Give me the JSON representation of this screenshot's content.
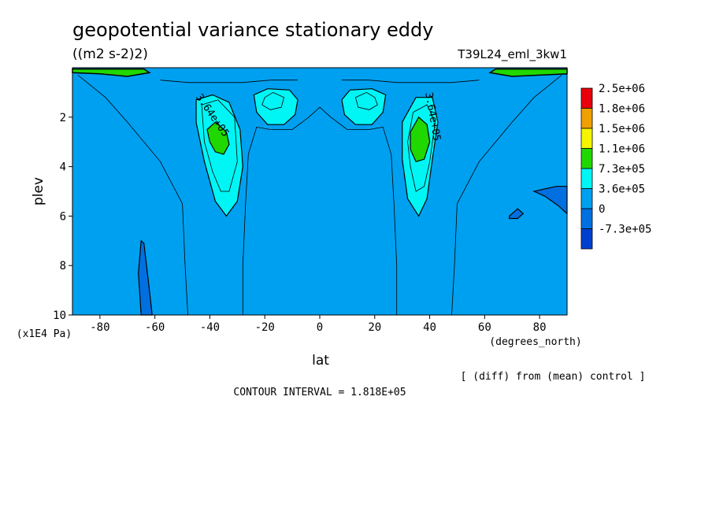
{
  "chart_data": {
    "type": "heatmap",
    "title": "geopotential variance stationary eddy",
    "units": "((m2 s-2)2)",
    "run_label": "T39L24_eml_3kw1",
    "xlabel": "lat",
    "x_units": "(degrees_north)",
    "ylabel": "plev",
    "y_units": "(x1E4 Pa)",
    "xlim": [
      -90,
      90
    ],
    "ylim": [
      10,
      0
    ],
    "x_ticks": [
      -80,
      -60,
      -40,
      -20,
      0,
      20,
      40,
      60,
      80
    ],
    "x_tick_labels": [
      "-80",
      "-60",
      "-40",
      "-20",
      "0",
      "20",
      "40",
      "60",
      "80"
    ],
    "y_ticks": [
      2,
      4,
      6,
      8,
      10
    ],
    "y_tick_labels": [
      "2",
      "4",
      "6",
      "8",
      "10"
    ],
    "contour_interval_text": "CONTOUR INTERVAL = 1.818E+05",
    "diff_note": "[ (diff) from (mean) control ]",
    "contour_labels": [
      {
        "text": "3.64e+05",
        "lat": -40,
        "plev": 2.0
      },
      {
        "text": "3.64e+05",
        "lat": 40,
        "plev": 2.0
      }
    ],
    "legend": {
      "labels": [
        "2.5e+06",
        "1.8e+06",
        "1.5e+06",
        "1.1e+06",
        "7.3e+05",
        "3.6e+05",
        "0",
        "-7.3e+05"
      ],
      "colors": [
        "#e8000b",
        "#f0a000",
        "#f5f500",
        "#20d800",
        "#00f5f5",
        "#00a0f0",
        "#0070e0",
        "#0040d0"
      ]
    },
    "regions": [
      {
        "level": "0-3.6e+05",
        "color": "#00a0f0",
        "description": "background field"
      },
      {
        "level": "3.6e+05-7.3e+05",
        "color": "#00f5f5",
        "lat_range": [
          -45,
          -28
        ],
        "plev_range": [
          1.3,
          6.0
        ]
      },
      {
        "level": "7.3e+05-1.1e+06",
        "color": "#20d800",
        "lat_range": [
          -41,
          -33
        ],
        "plev_range": [
          2.2,
          3.5
        ]
      },
      {
        "level": "3.6e+05-7.3e+05",
        "color": "#00f5f5",
        "lat_range": [
          30,
          43
        ],
        "plev_range": [
          1.3,
          6.0
        ]
      },
      {
        "level": "7.3e+05-1.1e+06",
        "color": "#20d800",
        "lat_range": [
          33,
          40
        ],
        "plev_range": [
          2.0,
          3.8
        ]
      },
      {
        "level": "3.6e+05-7.3e+05",
        "color": "#00f5f5",
        "lat_range": [
          -24,
          -8
        ],
        "plev_range": [
          0.9,
          2.3
        ]
      },
      {
        "level": "3.6e+05-7.3e+05",
        "color": "#00f5f5",
        "lat_range": [
          8,
          24
        ],
        "plev_range": [
          0.9,
          2.3
        ]
      },
      {
        "level": "<0",
        "color": "#0070e0",
        "lat_range": [
          -66,
          -61
        ],
        "plev_range": [
          7.0,
          10
        ]
      },
      {
        "level": "<0",
        "color": "#0070e0",
        "lat_range": [
          78,
          90
        ],
        "plev_range": [
          4.8,
          5.9
        ]
      },
      {
        "level": "<0",
        "color": "#0070e0",
        "lat_range": [
          69,
          74
        ],
        "plev_range": [
          5.7,
          6.1
        ]
      }
    ]
  }
}
